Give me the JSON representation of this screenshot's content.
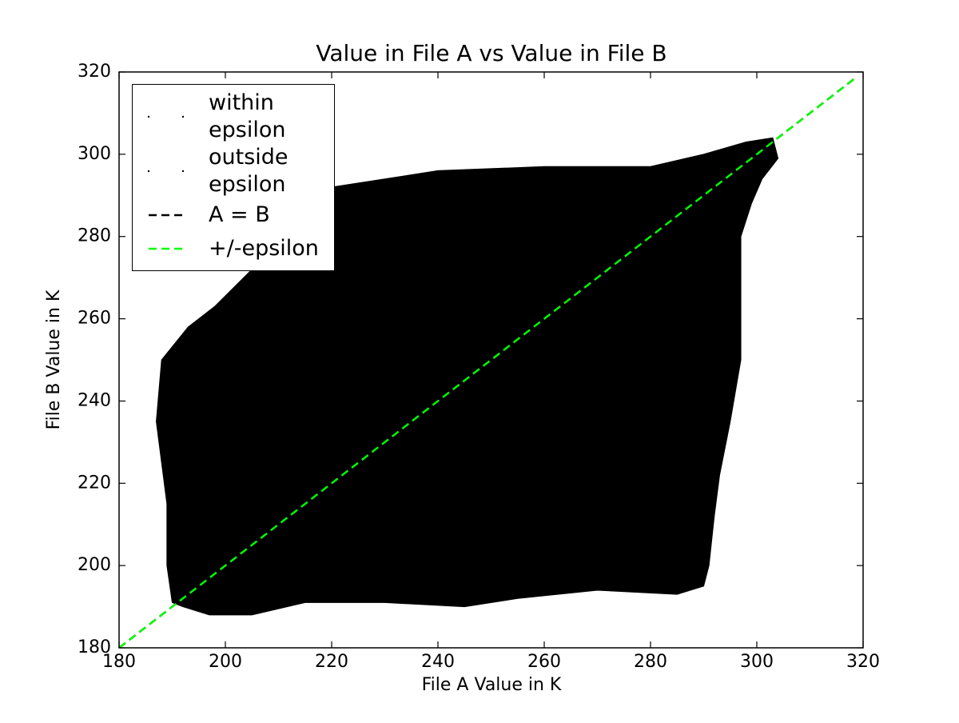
{
  "chart_data": {
    "type": "scatter",
    "title": "Value in File A vs Value in File B",
    "x_label": "File A Value in K",
    "y_label": "File B Value in K",
    "xlim": [
      180,
      320
    ],
    "ylim": [
      180,
      320
    ],
    "xticks": [
      180,
      200,
      220,
      240,
      260,
      280,
      300,
      320
    ],
    "yticks": [
      180,
      200,
      220,
      240,
      260,
      280,
      300,
      320
    ],
    "legend": "upper left",
    "series": [
      {
        "name": "within epsilon",
        "type": "scatter",
        "color": "#000000",
        "x": [
          300,
          302,
          303
        ],
        "y": [
          301,
          302.5,
          303.5
        ]
      },
      {
        "name": "outside epsilon",
        "type": "scatter",
        "color": "#000000",
        "fill": true,
        "x": [
          190,
          189,
          189,
          187,
          188,
          193,
          198,
          205,
          212,
          220,
          230,
          240,
          260,
          280,
          290,
          298,
          303,
          304,
          301,
          299,
          297,
          297,
          297,
          295,
          293,
          292,
          291,
          290,
          285,
          270,
          255,
          245,
          230,
          215,
          205,
          197,
          192
        ],
        "y": [
          191,
          200,
          215,
          235,
          250,
          258,
          263,
          272,
          285,
          292,
          294,
          296,
          297,
          297,
          300,
          303,
          304,
          299,
          294,
          288,
          280,
          265,
          250,
          235,
          222,
          212,
          200,
          195,
          193,
          194,
          192,
          190,
          191,
          191,
          188,
          188,
          190
        ]
      },
      {
        "name": "A = B",
        "type": "line",
        "color": "#000000",
        "linestyle": "dashed",
        "x": [
          180,
          318.5
        ],
        "y": [
          180,
          318.5
        ]
      },
      {
        "name": "+/-epsilon",
        "type": "line",
        "color": "#00ff00",
        "linestyle": "dashed",
        "x": [
          180,
          318.5
        ],
        "y": [
          180,
          318.5
        ]
      }
    ]
  }
}
